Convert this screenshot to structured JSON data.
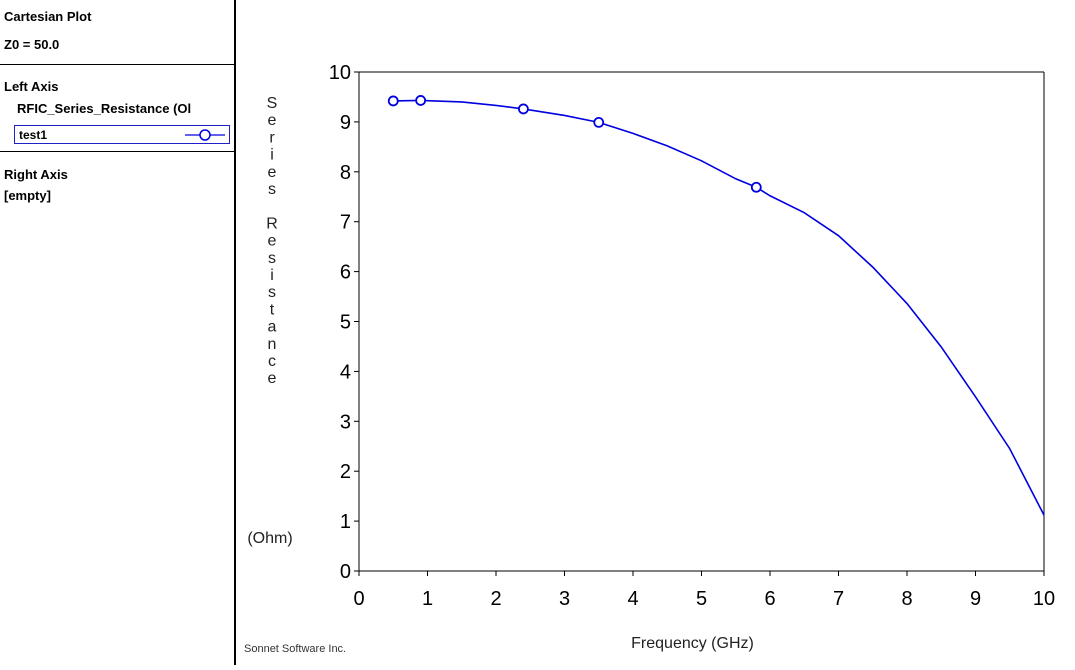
{
  "sidebar": {
    "plot_type": "Cartesian Plot",
    "z0": "Z0 = 50.0",
    "left_axis_title": "Left Axis",
    "left_axis_measurement": "RFIC_Series_Resistance (Ol",
    "trace_name": "test1",
    "right_axis_title": "Right Axis",
    "right_axis_value": "[empty]"
  },
  "footer": "Sonnet Software Inc.",
  "colors": {
    "trace": "#0000e0",
    "axis": "#000000"
  },
  "chart_data": {
    "type": "line",
    "xlabel": "Frequency (GHz)",
    "ylabel_letters": [
      "S",
      "e",
      "r",
      "i",
      "e",
      "s",
      "",
      "R",
      "e",
      "s",
      "i",
      "s",
      "t",
      "a",
      "n",
      "c",
      "e"
    ],
    "ylabel_unit": "(Ohm)",
    "xlim": [
      0,
      10
    ],
    "ylim": [
      0,
      10
    ],
    "x_ticks": [
      "0",
      "1",
      "2",
      "3",
      "4",
      "5",
      "6",
      "7",
      "8",
      "9",
      "10"
    ],
    "y_ticks": [
      "0",
      "1",
      "2",
      "3",
      "4",
      "5",
      "6",
      "7",
      "8",
      "9",
      "10"
    ],
    "grid": false,
    "series": [
      {
        "name": "test1",
        "x": [
          0.5,
          0.9,
          1.5,
          2.0,
          2.4,
          3.0,
          3.5,
          4.0,
          4.5,
          5.0,
          5.5,
          5.8,
          6.0,
          6.5,
          7.0,
          7.5,
          8.0,
          8.5,
          9.0,
          9.5,
          10.0
        ],
        "y": [
          9.42,
          9.43,
          9.4,
          9.33,
          9.26,
          9.13,
          8.99,
          8.77,
          8.52,
          8.22,
          7.86,
          7.69,
          7.52,
          7.18,
          6.72,
          6.09,
          5.36,
          4.49,
          3.49,
          2.45,
          1.12
        ]
      }
    ],
    "markers": {
      "x": [
        0.5,
        0.9,
        2.4,
        3.5,
        5.8
      ],
      "y": [
        9.42,
        9.43,
        9.26,
        8.99,
        7.69
      ]
    }
  }
}
